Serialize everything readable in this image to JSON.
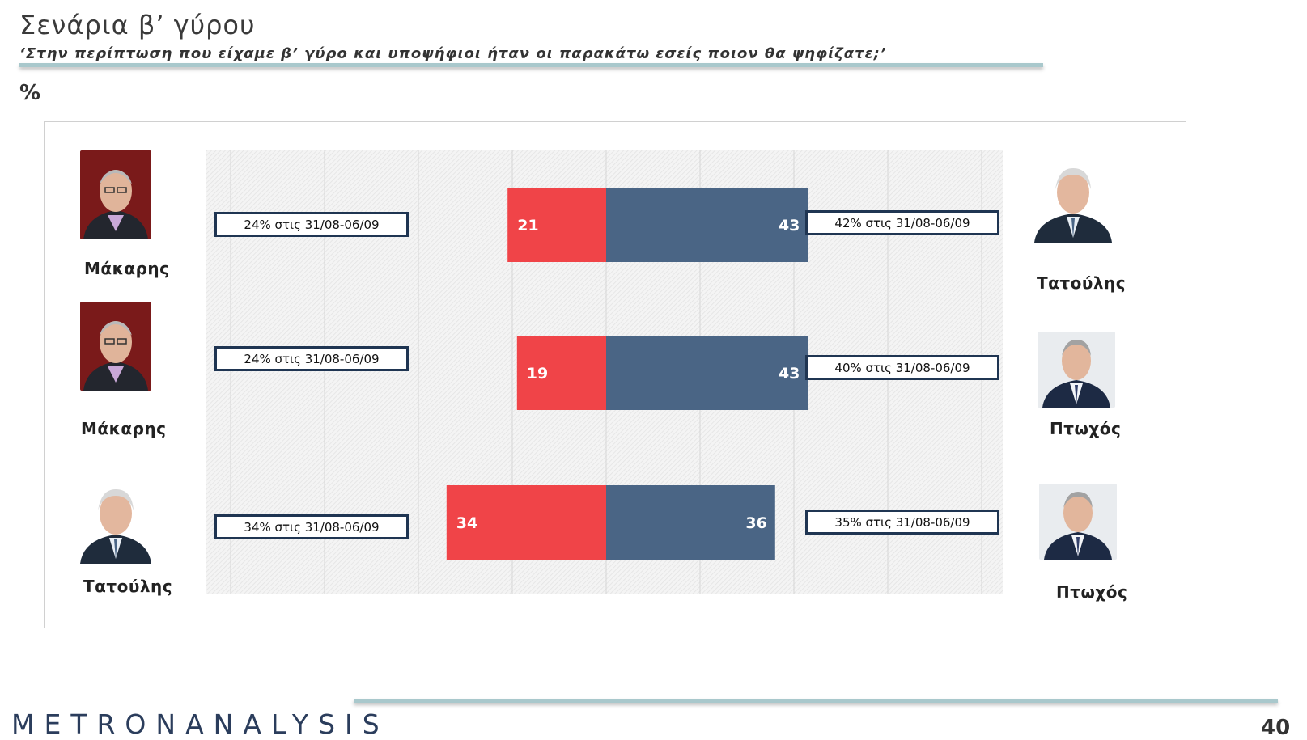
{
  "header": {
    "title": "Σενάρια β’ γύρου",
    "subtitle": "‘Στην περίπτωση που είχαμε β’ γύρο και υποψήφιοι ήταν οι παρακάτω εσείς ποιον θα ψηφίζατε;’",
    "unit": "%"
  },
  "colors": {
    "left_bar": "#f04448",
    "right_bar": "#4a6585",
    "callout_border": "#1f3552"
  },
  "chart_data": {
    "type": "bar",
    "orientation": "horizontal-diverging",
    "grid": true,
    "scenarios": [
      {
        "left_candidate": "Μάκαρης",
        "right_candidate": "Τατούλης",
        "left_value": 21,
        "right_value": 43,
        "left_previous": "24% στις 31/08-06/09",
        "right_previous": "42% στις 31/08-06/09"
      },
      {
        "left_candidate": "Μάκαρης",
        "right_candidate": "Πτωχός",
        "left_value": 19,
        "right_value": 43,
        "left_previous": "24% στις 31/08-06/09",
        "right_previous": "40% στις 31/08-06/09"
      },
      {
        "left_candidate": "Τατούλης",
        "right_candidate": "Πτωχός",
        "left_value": 34,
        "right_value": 36,
        "left_previous": "34% στις 31/08-06/09",
        "right_previous": "35% στις 31/08-06/09"
      }
    ]
  },
  "photos": {
    "makaris": "portrait-makaris",
    "tatoulis": "portrait-tatoulis",
    "ptochos": "portrait-ptochos"
  },
  "footer": {
    "logo": "METRONANALYSIS",
    "page_number": "40"
  }
}
